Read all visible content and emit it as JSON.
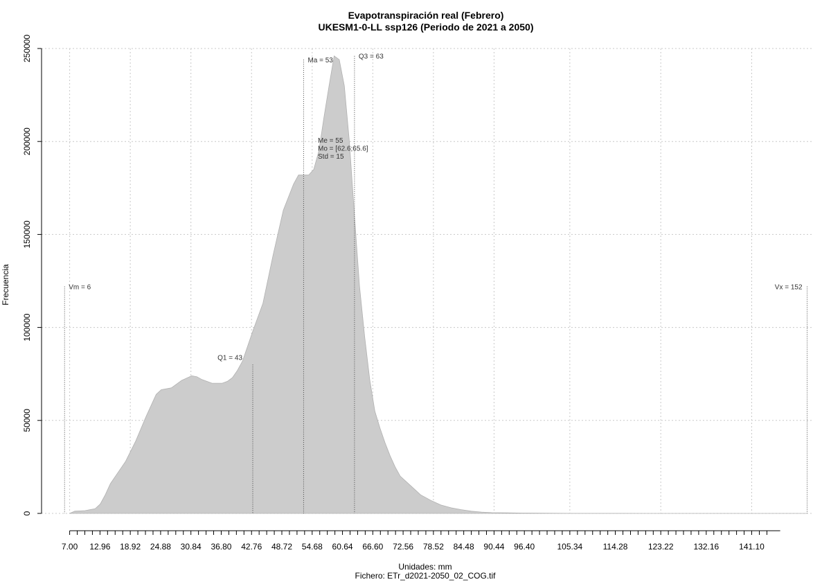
{
  "chart_data": {
    "type": "area",
    "title": "Evapotranspiración real (Febrero)",
    "subtitle": "UKESM1-0-LL ssp126 (Periodo de 2021 a 2050)",
    "xlabel": "Unidades: mm",
    "ylabel": "Frecuencia",
    "file_note": "Fichero: ETr_d2021-2050_02_COG.tif",
    "xlim": [
      5,
      155
    ],
    "ylim": [
      0,
      250000
    ],
    "x_ticks": [
      7.0,
      12.96,
      18.92,
      24.88,
      30.84,
      36.8,
      42.76,
      48.72,
      54.68,
      60.64,
      66.6,
      72.56,
      78.52,
      84.48,
      90.44,
      96.4,
      105.34,
      114.28,
      123.22,
      132.16,
      141.1
    ],
    "x_tick_labels": [
      "7.00",
      "12.96",
      "18.92",
      "24.88",
      "30.84",
      "36.80",
      "42.76",
      "48.72",
      "54.68",
      "60.64",
      "66.60",
      "72.56",
      "78.52",
      "84.48",
      "90.44",
      "96.40",
      "105.34",
      "114.28",
      "123.22",
      "132.16",
      "141.10"
    ],
    "x_minor_ticks": [
      8.49,
      9.98,
      11.47,
      14.45,
      15.94,
      17.43,
      20.41,
      21.9,
      23.39,
      26.37,
      27.86,
      29.35,
      32.33,
      33.82,
      35.31,
      38.29,
      39.78,
      41.27,
      44.25,
      45.74,
      47.23,
      50.21,
      51.7,
      53.19,
      56.17,
      57.66,
      59.15,
      62.13,
      63.62,
      65.11,
      68.09,
      69.58,
      71.07,
      74.05,
      75.54,
      77.03,
      80.01,
      81.5,
      82.99,
      85.97,
      87.46,
      88.95,
      91.93,
      93.42,
      94.91,
      97.89,
      99.38,
      100.87,
      102.36,
      103.85,
      106.84,
      108.33,
      109.82,
      111.31,
      112.8,
      115.78,
      117.27,
      118.76,
      120.25,
      121.74,
      124.71,
      126.2,
      127.69,
      129.18,
      130.67,
      133.65,
      135.14,
      136.63,
      138.12,
      139.61,
      142.6,
      144.09
    ],
    "y_ticks": [
      0,
      50000,
      100000,
      150000,
      200000,
      250000
    ],
    "y_tick_labels": [
      "0",
      "50000",
      "100000",
      "150000",
      "200000",
      "250000"
    ],
    "x_grid": [
      7.0,
      18.92,
      30.84,
      42.76,
      54.68,
      66.6,
      78.52,
      90.44,
      105.34,
      123.22,
      141.1
    ],
    "grid": true,
    "series": [
      {
        "color": "#cccccc",
        "x": [
          7,
          8,
          10,
          12,
          13,
          14,
          15,
          16,
          18,
          20,
          22,
          24,
          25,
          26,
          27,
          29,
          31,
          32,
          33,
          35,
          37,
          38,
          39,
          40,
          41,
          43,
          45,
          47,
          49,
          51,
          52,
          53,
          54,
          55,
          56,
          57,
          58,
          59,
          60,
          61,
          62,
          63,
          64,
          65,
          66,
          67,
          68,
          69,
          70,
          71,
          72,
          74,
          76,
          78,
          80,
          82,
          84,
          86,
          88,
          90,
          93,
          96,
          100,
          105,
          110,
          120,
          130,
          140,
          150,
          152
        ],
        "y": [
          0,
          1200,
          1500,
          2500,
          5000,
          10000,
          16000,
          20000,
          28000,
          39000,
          52000,
          64000,
          66500,
          67000,
          67500,
          71500,
          74000,
          73500,
          72000,
          70000,
          70000,
          71000,
          73000,
          77000,
          82000,
          98000,
          113000,
          139000,
          163000,
          177000,
          182000,
          182000,
          182000,
          185000,
          195000,
          213000,
          230000,
          246000,
          244000,
          230000,
          200000,
          160000,
          122000,
          95000,
          72000,
          55000,
          46000,
          38000,
          31000,
          25000,
          20000,
          15000,
          10000,
          7000,
          4500,
          3000,
          2000,
          1200,
          700,
          400,
          300,
          200,
          100,
          50,
          20,
          10,
          5,
          2,
          0,
          0
        ]
      }
    ],
    "reference_lines": [
      {
        "label": "Vm = 6",
        "x": 6,
        "y_top": 122000
      },
      {
        "label": "Q1 = 43",
        "x": 43,
        "y_top": 80000
      },
      {
        "label": "Ma = 53",
        "x": 53,
        "y_top": 244000
      },
      {
        "label": "Q3 = 63",
        "x": 63,
        "y_top": 246000
      },
      {
        "label": "Vx = 152",
        "x": 152,
        "y_top": 122000
      }
    ],
    "stats_text": [
      "Me = 55",
      "Mo = [62.6;65.6]",
      "Std = 15"
    ]
  }
}
